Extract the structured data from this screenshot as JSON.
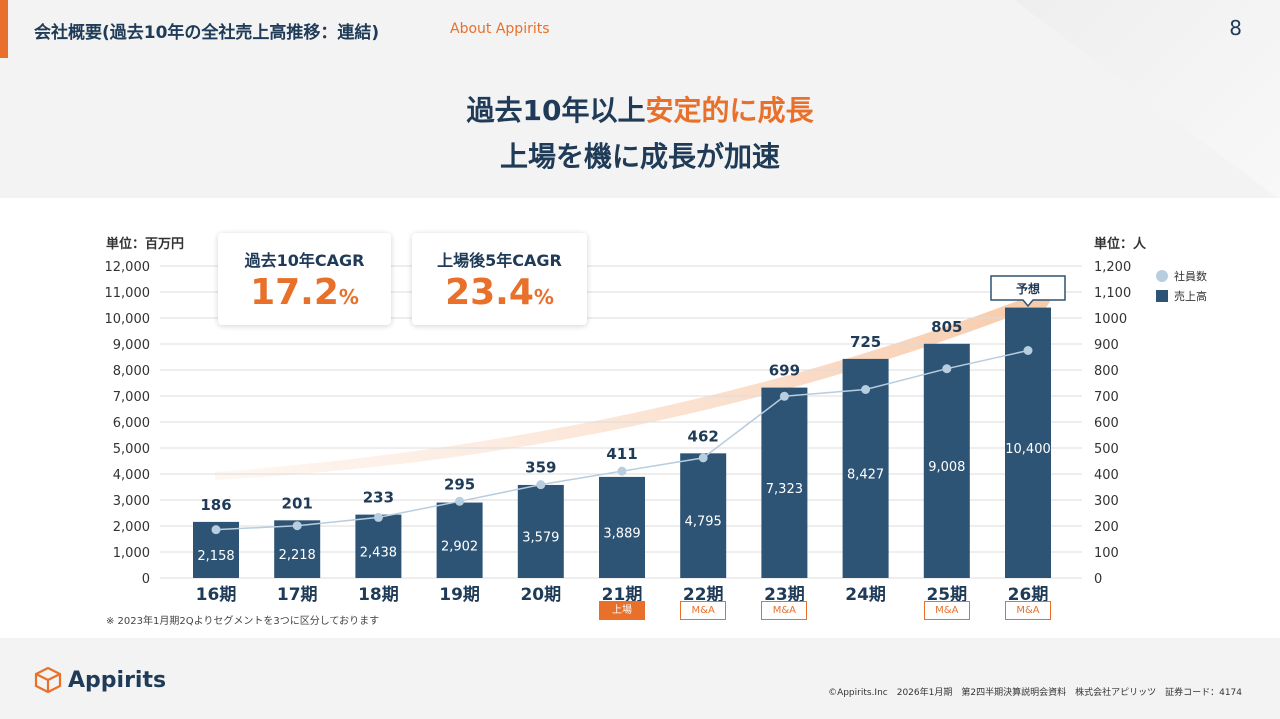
{
  "header": {
    "title": "会社概要(過去10年の全社売上高推移：連結)",
    "subtitle": "About Appirits",
    "page": "8"
  },
  "headline": {
    "line1_a": "過去10年以上",
    "line1_b": "安定的に成長",
    "line2": "上場を機に成長が加速"
  },
  "cagr": [
    {
      "label": "過去10年CAGR",
      "value": "17.2",
      "unit": "%"
    },
    {
      "label": "上場後5年CAGR",
      "value": "23.4",
      "unit": "%"
    }
  ],
  "note": "※ 2023年1月期2Qよりセグメントを3つに区分しております",
  "forecast_label": "予想",
  "tags": [
    {
      "period": "21期",
      "label": "上場",
      "solid": true
    },
    {
      "period": "22期",
      "label": "M&A",
      "solid": false
    },
    {
      "period": "23期",
      "label": "M&A",
      "solid": false
    },
    {
      "period": "25期",
      "label": "M&A",
      "solid": false
    },
    {
      "period": "26期",
      "label": "M&A",
      "solid": false
    }
  ],
  "footer": {
    "logo": "Appirits",
    "text": "©Appirits.Inc　2026年1月期　第2四半期決算説明会資料　株式会社アピリッツ　証券コード：4174"
  },
  "colors": {
    "bar": "#2e5475",
    "line": "#b7cde0",
    "accent": "#e8702a"
  },
  "chart_data": {
    "type": "bar+line",
    "categories": [
      "16期",
      "17期",
      "18期",
      "19期",
      "20期",
      "21期",
      "22期",
      "23期",
      "24期",
      "25期",
      "26期"
    ],
    "series": [
      {
        "name": "売上高",
        "type": "bar",
        "axis": "left",
        "values": [
          2158,
          2218,
          2438,
          2902,
          3579,
          3889,
          4795,
          7323,
          8427,
          9008,
          10400
        ],
        "labels": [
          "2,158",
          "2,218",
          "2,438",
          "2,902",
          "3,579",
          "3,889",
          "4,795",
          "7,323",
          "8,427",
          "9,008",
          "10,400"
        ]
      },
      {
        "name": "社員数",
        "type": "line",
        "axis": "right",
        "values": [
          186,
          201,
          233,
          295,
          359,
          411,
          462,
          699,
          725,
          805,
          875
        ],
        "labels": [
          "186",
          "201",
          "233",
          "295",
          "359",
          "411",
          "462",
          "699",
          "725",
          "805",
          ""
        ]
      }
    ],
    "ylabel_left": "単位：百万円",
    "ylabel_right": "単位：人",
    "ylim_left": [
      0,
      12000
    ],
    "ylim_right": [
      0,
      1200
    ],
    "yticks_left": [
      "0",
      "1,000",
      "2,000",
      "3,000",
      "4,000",
      "5,000",
      "6,000",
      "7,000",
      "8,000",
      "9,000",
      "10,000",
      "11,000",
      "12,000"
    ],
    "yticks_right": [
      "0",
      "100",
      "200",
      "300",
      "400",
      "500",
      "600",
      "700",
      "800",
      "900",
      "1000",
      "1,100",
      "1,200"
    ],
    "grid": true,
    "legend": "right"
  }
}
